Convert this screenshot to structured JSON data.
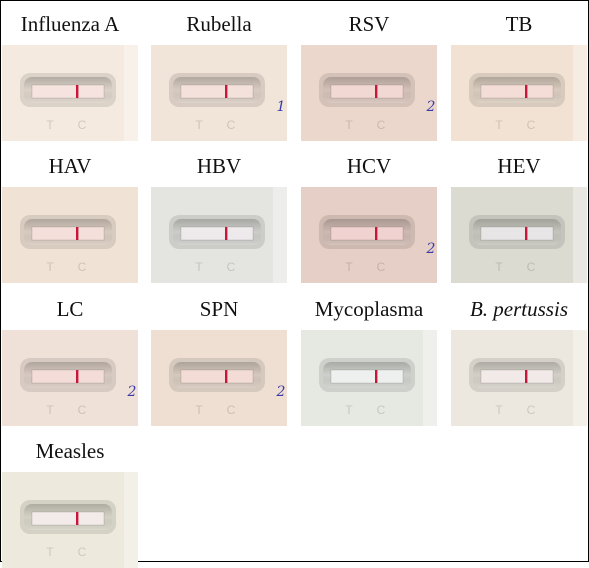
{
  "panels": [
    {
      "label": "Influenza A",
      "italic": false,
      "bg": "#f4eadf",
      "window": "#f6e3df",
      "lines": 1,
      "mark": "",
      "strip": true
    },
    {
      "label": "Rubella",
      "italic": false,
      "bg": "#f1e4d9",
      "window": "#f5e1dc",
      "lines": 1,
      "mark": "1",
      "strip": false
    },
    {
      "label": "RSV",
      "italic": false,
      "bg": "#ecd7cc",
      "window": "#f2d8d3",
      "lines": 1,
      "mark": "2",
      "strip": false
    },
    {
      "label": "TB",
      "italic": false,
      "bg": "#f1e2d3",
      "window": "#f4ddd6",
      "lines": 1,
      "mark": "",
      "strip": true
    },
    {
      "label": "HAV",
      "italic": false,
      "bg": "#f1e2d6",
      "window": "#f5dfdb",
      "lines": 1,
      "mark": "",
      "strip": false
    },
    {
      "label": "HBV",
      "italic": false,
      "bg": "#e4e4e0",
      "window": "#eeeaec",
      "lines": 1,
      "mark": "",
      "strip": true
    },
    {
      "label": "HCV",
      "italic": false,
      "bg": "#e6cfc6",
      "window": "#f0d3d1",
      "lines": 1,
      "mark": "2",
      "strip": false
    },
    {
      "label": "HEV",
      "italic": false,
      "bg": "#dcdbd2",
      "window": "#e8e5e6",
      "lines": 1,
      "mark": "",
      "strip": true
    },
    {
      "label": "LC",
      "italic": false,
      "bg": "#f0e1d8",
      "window": "#f4ddd9",
      "lines": 1,
      "mark": "2",
      "strip": false
    },
    {
      "label": "SPN",
      "italic": false,
      "bg": "#eedfd2",
      "window": "#f3dcd5",
      "lines": 1,
      "mark": "2",
      "strip": false
    },
    {
      "label": "Mycoplasma",
      "italic": false,
      "bg": "#e6e8e2",
      "window": "#eef0ef",
      "lines": 1,
      "mark": "",
      "strip": true
    },
    {
      "label": "B. pertussis",
      "italic": true,
      "bg": "#ede8df",
      "window": "#f2eae9",
      "lines": 1,
      "mark": "",
      "strip": true
    },
    {
      "label": "Measles",
      "italic": false,
      "bg": "#ede9dc",
      "window": "#f3ebe9",
      "lines": 1,
      "mark": "",
      "strip": true
    }
  ],
  "cassette_markings": {
    "test": "T",
    "control": "C"
  },
  "colors": {
    "line": "#c8163a",
    "pen": "#3a3aa8",
    "text": "#111111"
  }
}
